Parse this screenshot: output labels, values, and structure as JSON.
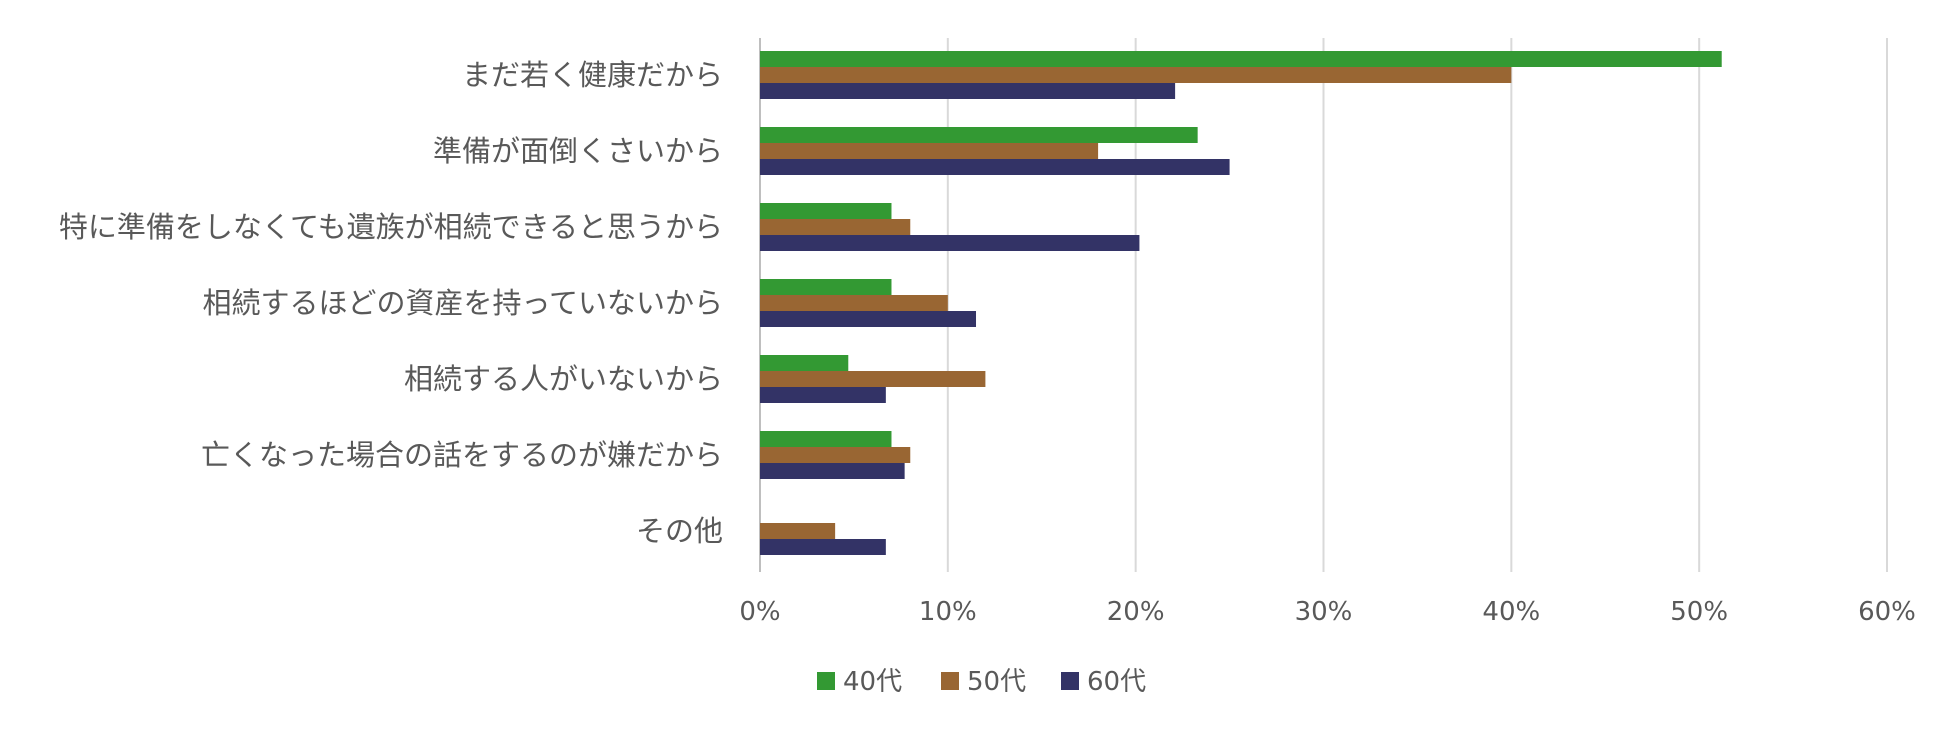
{
  "chart_data": {
    "type": "bar",
    "orientation": "horizontal",
    "categories": [
      "まだ若く健康だから",
      "準備が面倒くさいから",
      "特に準備をしなくても遺族が相続できると思うから",
      "相続するほどの資産を持っていないから",
      "相続する人がいないから",
      "亡くなった場合の話をするのが嫌だから",
      "その他"
    ],
    "series": [
      {
        "name": "40代",
        "color": "#339933",
        "values": [
          51.2,
          23.3,
          7.0,
          7.0,
          4.7,
          7.0,
          0
        ]
      },
      {
        "name": "50代",
        "color": "#996633",
        "values": [
          40.0,
          18.0,
          8.0,
          10.0,
          12.0,
          8.0,
          4.0
        ]
      },
      {
        "name": "60代",
        "color": "#333366",
        "values": [
          22.1,
          25.0,
          20.2,
          11.5,
          6.7,
          7.7,
          6.7
        ]
      }
    ],
    "xlim": [
      0,
      60
    ],
    "xticks": [
      "0%",
      "10%",
      "20%",
      "30%",
      "40%",
      "50%",
      "60%"
    ],
    "grid": true,
    "legend_position": "bottom"
  }
}
